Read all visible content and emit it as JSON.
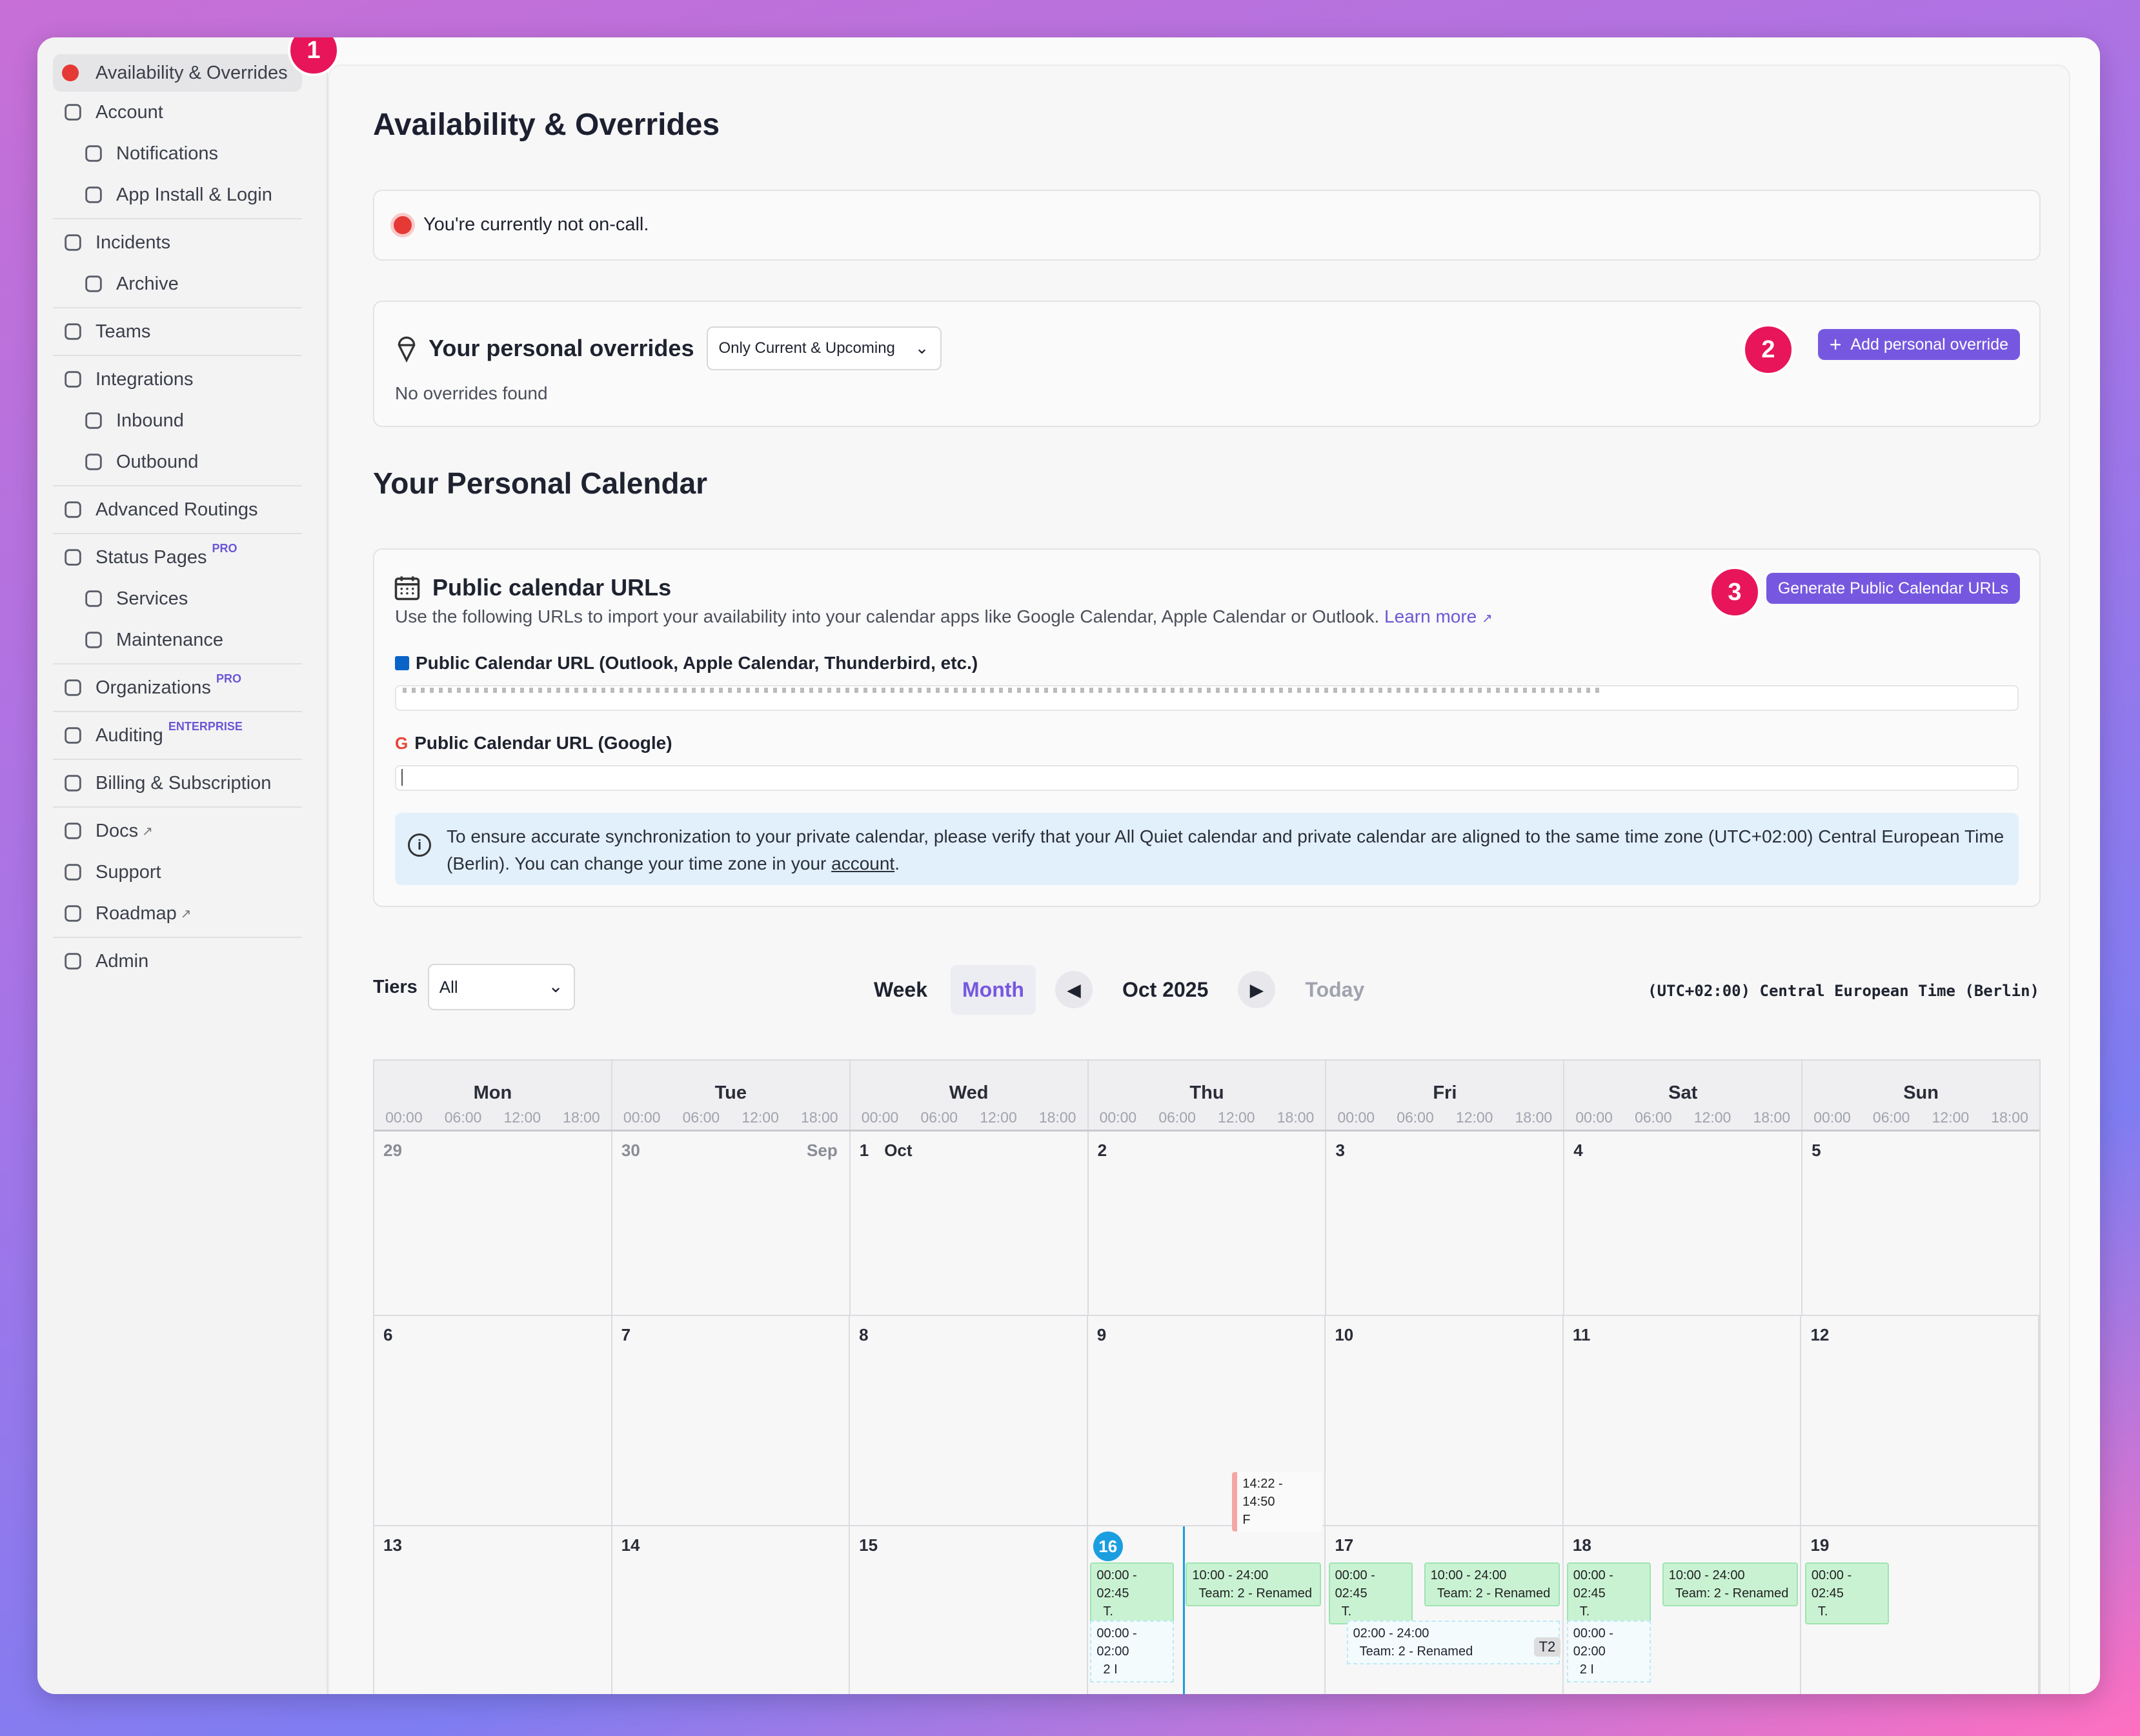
{
  "sidebar": {
    "items": [
      {
        "label": "Availability & Overrides",
        "icon": "status-dot-icon",
        "active": true
      },
      {
        "label": "Account",
        "icon": "user-icon"
      },
      {
        "label": "Notifications",
        "icon": "bell-icon",
        "sub": true
      },
      {
        "label": "App Install & Login",
        "icon": "phone-icon",
        "sub": true
      },
      {
        "label": "Incidents",
        "icon": "megaphone-icon"
      },
      {
        "label": "Archive",
        "icon": "archive-icon",
        "sub": true
      },
      {
        "label": "Teams",
        "icon": "teams-icon"
      },
      {
        "label": "Integrations",
        "icon": "puzzle-icon"
      },
      {
        "label": "Inbound",
        "icon": "inbound-icon",
        "sub": true
      },
      {
        "label": "Outbound",
        "icon": "share-icon",
        "sub": true
      },
      {
        "label": "Advanced Routings",
        "icon": "routing-icon"
      },
      {
        "label": "Status Pages",
        "icon": "broadcast-icon",
        "sup": "PRO"
      },
      {
        "label": "Services",
        "icon": "server-icon",
        "sub": true
      },
      {
        "label": "Maintenance",
        "icon": "tools-icon",
        "sub": true
      },
      {
        "label": "Organizations",
        "icon": "building-icon",
        "sup": "PRO"
      },
      {
        "label": "Auditing",
        "icon": "shield-icon",
        "sup": "ENTERPRISE"
      },
      {
        "label": "Billing & Subscription",
        "icon": "card-icon"
      },
      {
        "label": "Docs",
        "icon": "book-icon",
        "ext": true
      },
      {
        "label": "Support",
        "icon": "chat-icon"
      },
      {
        "label": "Roadmap",
        "icon": "map-icon",
        "ext": true
      },
      {
        "label": "Admin",
        "icon": "terminal-icon"
      }
    ]
  },
  "badges": [
    "1",
    "2",
    "3"
  ],
  "page": {
    "title": "Availability & Overrides",
    "oncall_status": "You're currently not on-call.",
    "overrides": {
      "title": "Your personal overrides",
      "filter": "Only Current & Upcoming",
      "empty": "No overrides found",
      "add_button": "Add personal override"
    },
    "calendar_title": "Your Personal Calendar",
    "public_urls": {
      "title": "Public calendar URLs",
      "description": "Use the following URLs to import your availability into your calendar apps like Google Calendar, Apple Calendar or Outlook.",
      "learn_more": "Learn more",
      "generate_button": "Generate Public Calendar URLs",
      "outlook_label": "Public Calendar URL (Outlook, Apple Calendar, Thunderbird, etc.)",
      "google_label": "Public Calendar URL (Google)",
      "info_text": "To ensure accurate synchronization to your private calendar, please verify that your All Quiet calendar and private calendar are aligned to the same time zone (UTC+02:00) Central European Time (Berlin). You can change your time zone in your",
      "info_link": "account",
      "info_end": "."
    }
  },
  "calendar": {
    "tiers_label": "Tiers",
    "tiers_value": "All",
    "view_week": "Week",
    "view_month": "Month",
    "period": "Oct 2025",
    "today": "Today",
    "timezone": "(UTC+02:00) Central European Time (Berlin)",
    "days": [
      "Mon",
      "Tue",
      "Wed",
      "Thu",
      "Fri",
      "Sat",
      "Sun"
    ],
    "ticks": [
      "00:00",
      "06:00",
      "12:00",
      "18:00"
    ],
    "weeks": [
      [
        "29",
        "30",
        "1",
        "2",
        "3",
        "4",
        "5"
      ],
      [
        "6",
        "7",
        "8",
        "9",
        "10",
        "11",
        "12"
      ],
      [
        "13",
        "14",
        "15",
        "16",
        "17",
        "18",
        "19"
      ]
    ],
    "sep_label": "Sep",
    "oct_label": "Oct",
    "events": {
      "e1_time": "14:22 - 14:50",
      "e1_sub": "F",
      "e_a": "00:00 - 02:45",
      "e_t": "T.",
      "e_b": "10:00 - 24:00",
      "e_team": "Team: 2 - Renamed",
      "e_c": "00:00 - 02:00",
      "e_2": "2 I",
      "e_d": "02:00 - 24:00",
      "e_t2": "T2"
    }
  }
}
